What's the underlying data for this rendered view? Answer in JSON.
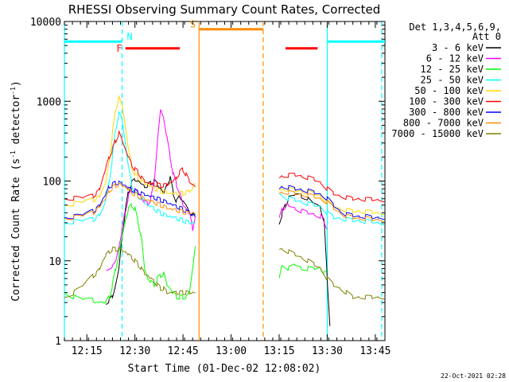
{
  "chart_data": {
    "type": "line",
    "title": "RHESSI Observing Summary Count Rates, Corrected",
    "ylabel": "Corrected Count Rate (s⁻¹ detector⁻¹)",
    "ylabel_main": "Corrected Count Rate (s",
    "ylabel_sup1": "-1",
    "ylabel_mid": " detector",
    "ylabel_sup2": "-1",
    "ylabel_end": ")",
    "xlabel": "Start Time (01-Dec-02 12:08:02)",
    "timestamp": "22-Oct-2021 02:28",
    "y_scale": "log",
    "ylim": [
      1,
      10000
    ],
    "x_minutes_range": [
      0,
      100
    ],
    "x_ticks": [
      {
        "label": "12:15",
        "min": 7
      },
      {
        "label": "12:30",
        "min": 22
      },
      {
        "label": "12:45",
        "min": 37
      },
      {
        "label": "13:00",
        "min": 52
      },
      {
        "label": "13:15",
        "min": 67
      },
      {
        "label": "13:30",
        "min": 82
      },
      {
        "label": "13:45",
        "min": 97
      }
    ],
    "y_ticks": [
      {
        "label": "1",
        "value": 1
      },
      {
        "label": "10",
        "value": 10
      },
      {
        "label": "100",
        "value": 100
      },
      {
        "label": "1000",
        "value": 1000
      },
      {
        "label": "10000",
        "value": 10000
      }
    ],
    "legend_header": [
      "Det 1,3,4,5,6,9,",
      "Att 0"
    ],
    "legend_position": "right",
    "series": [
      {
        "name": "3 - 6 keV",
        "color": "#000000",
        "x": [
          13,
          14,
          15,
          16,
          17,
          18,
          19,
          20,
          21,
          22,
          23,
          24,
          25,
          26,
          27,
          28,
          29,
          30,
          31,
          32,
          33,
          34,
          35,
          36,
          37,
          38,
          39,
          40,
          41,
          67,
          68,
          69,
          70,
          72,
          74,
          76,
          78,
          80,
          81,
          82,
          83
        ],
        "y": [
          3,
          3.2,
          3.6,
          5,
          8,
          20,
          42,
          75,
          95,
          105,
          100,
          92,
          85,
          88,
          95,
          100,
          92,
          80,
          70,
          90,
          110,
          70,
          55,
          65,
          55,
          50,
          40,
          38,
          35,
          30,
          40,
          50,
          62,
          68,
          65,
          60,
          52,
          45,
          32,
          6,
          1.2
        ]
      },
      {
        "name": "6 - 12 keV",
        "color": "#ff00ff",
        "x": [
          13,
          15,
          16,
          17,
          18,
          19,
          20,
          21,
          22,
          23,
          24,
          25,
          26,
          27,
          28,
          29,
          30,
          31,
          32,
          33,
          34,
          35,
          36,
          37,
          38,
          39,
          40,
          41,
          67,
          68,
          69,
          70,
          72,
          74,
          76,
          78,
          80,
          81,
          82
        ],
        "y": [
          8,
          8.5,
          10,
          15,
          25,
          42,
          65,
          75,
          78,
          72,
          62,
          55,
          52,
          60,
          100,
          300,
          800,
          600,
          350,
          200,
          120,
          90,
          70,
          50,
          45,
          40,
          25,
          42,
          33,
          45,
          48,
          50,
          45,
          42,
          40,
          38,
          36,
          32,
          25
        ]
      },
      {
        "name": "12 - 25 keV",
        "color": "#00ff00",
        "x": [
          0,
          3,
          6,
          9,
          12,
          13,
          14,
          15,
          16,
          17,
          18,
          19,
          20,
          21,
          22,
          23,
          24,
          25,
          26,
          27,
          28,
          29,
          30,
          31,
          32,
          33,
          34,
          35,
          36,
          37,
          38,
          39,
          40,
          41,
          67,
          68,
          70,
          72,
          74,
          76,
          78,
          80,
          81,
          82
        ],
        "y": [
          4,
          3.5,
          3.3,
          3.2,
          3,
          3.1,
          3.5,
          5,
          8,
          12,
          20,
          32,
          45,
          50,
          45,
          30,
          20,
          8,
          6,
          5.5,
          5,
          6,
          6.5,
          7,
          5,
          4.5,
          4,
          3.5,
          3.5,
          3.5,
          3.5,
          4,
          8,
          18,
          6,
          9,
          8,
          9,
          8,
          8,
          8,
          8,
          7,
          7
        ]
      },
      {
        "name": "25 - 50 keV",
        "color": "#00ffff",
        "x": [
          0,
          3,
          6,
          9,
          10,
          11,
          12,
          13,
          14,
          15,
          16,
          17,
          18,
          19,
          20,
          21,
          22,
          23,
          24,
          25,
          26,
          27,
          28,
          29,
          30,
          31,
          32,
          33,
          34,
          35,
          36,
          37,
          38,
          39,
          40,
          41,
          67,
          68,
          70,
          72,
          74,
          76,
          78,
          80,
          82,
          84,
          86,
          88,
          90,
          92,
          94,
          96,
          98,
          100
        ],
        "y": [
          30,
          31,
          32,
          33,
          35,
          38,
          45,
          60,
          100,
          200,
          450,
          700,
          600,
          300,
          150,
          90,
          70,
          65,
          60,
          55,
          50,
          48,
          45,
          42,
          40,
          38,
          37,
          36,
          35,
          34,
          33,
          32,
          31,
          30,
          30,
          30,
          70,
          65,
          60,
          58,
          55,
          52,
          50,
          48,
          40,
          35,
          34,
          33,
          32,
          32,
          31,
          31,
          30,
          30
        ]
      },
      {
        "name": "50 - 100 keV",
        "color": "#ffd700",
        "x": [
          0,
          3,
          6,
          9,
          10,
          11,
          12,
          13,
          14,
          15,
          16,
          17,
          18,
          19,
          20,
          21,
          22,
          23,
          24,
          25,
          26,
          27,
          28,
          29,
          30,
          31,
          32,
          33,
          34,
          35,
          36,
          37,
          38,
          39,
          40,
          41,
          67,
          68,
          70,
          72,
          74,
          76,
          78,
          80,
          82,
          84,
          86,
          88,
          90,
          92,
          94,
          96,
          98,
          100
        ],
        "y": [
          50,
          52,
          55,
          58,
          60,
          65,
          80,
          100,
          180,
          400,
          800,
          1100,
          900,
          500,
          250,
          150,
          120,
          110,
          100,
          95,
          90,
          85,
          80,
          78,
          75,
          73,
          72,
          70,
          70,
          70,
          70,
          70,
          72,
          75,
          80,
          100,
          75,
          80,
          78,
          77,
          75,
          72,
          70,
          65,
          55,
          48,
          45,
          43,
          42,
          42,
          41,
          41,
          40,
          40
        ]
      },
      {
        "name": "100 - 300 keV",
        "color": "#ff0000",
        "x": [
          0,
          3,
          6,
          9,
          10,
          11,
          12,
          13,
          14,
          15,
          16,
          17,
          18,
          19,
          20,
          21,
          22,
          23,
          24,
          25,
          26,
          27,
          28,
          29,
          30,
          31,
          32,
          33,
          34,
          35,
          36,
          37,
          38,
          39,
          40,
          41,
          67,
          68,
          70,
          72,
          74,
          76,
          78,
          80,
          82,
          84,
          86,
          88,
          90,
          92,
          94,
          96,
          98,
          100
        ],
        "y": [
          60,
          61,
          62,
          65,
          70,
          80,
          110,
          150,
          200,
          250,
          320,
          400,
          330,
          250,
          200,
          160,
          140,
          130,
          110,
          100,
          95,
          92,
          90,
          90,
          88,
          88,
          90,
          95,
          100,
          110,
          130,
          140,
          120,
          100,
          90,
          85,
          110,
          115,
          118,
          120,
          115,
          110,
          105,
          95,
          80,
          70,
          65,
          62,
          60,
          60,
          59,
          59,
          58,
          58
        ]
      },
      {
        "name": "300 - 800 keV",
        "color": "#0000ff",
        "x": [
          0,
          3,
          6,
          9,
          10,
          11,
          12,
          13,
          14,
          15,
          16,
          17,
          18,
          19,
          20,
          21,
          22,
          23,
          24,
          25,
          26,
          27,
          28,
          29,
          30,
          31,
          32,
          33,
          34,
          35,
          36,
          37,
          38,
          39,
          40,
          41,
          67,
          68,
          70,
          72,
          74,
          76,
          78,
          80,
          82,
          84,
          86,
          88,
          90,
          92,
          94,
          96,
          98,
          100
        ],
        "y": [
          35,
          36,
          38,
          42,
          45,
          50,
          60,
          70,
          85,
          90,
          95,
          95,
          92,
          88,
          82,
          78,
          75,
          72,
          70,
          68,
          66,
          64,
          62,
          60,
          58,
          56,
          54,
          52,
          50,
          48,
          46,
          44,
          42,
          40,
          38,
          36,
          80,
          85,
          83,
          80,
          78,
          75,
          72,
          68,
          60,
          50,
          42,
          38,
          37,
          36,
          36,
          35,
          35,
          35
        ]
      },
      {
        "name": "800 - 7000 keV",
        "color": "#ff8c00",
        "x": [
          0,
          3,
          6,
          9,
          10,
          11,
          12,
          13,
          14,
          15,
          16,
          17,
          18,
          19,
          20,
          21,
          22,
          23,
          24,
          25,
          26,
          27,
          28,
          29,
          30,
          31,
          32,
          33,
          34,
          35,
          36,
          37,
          38,
          39,
          40,
          41,
          67,
          68,
          70,
          72,
          74,
          76,
          78,
          80,
          82,
          84,
          86,
          88,
          90,
          92,
          94,
          96,
          98,
          100
        ],
        "y": [
          34,
          35,
          37,
          40,
          43,
          48,
          55,
          62,
          75,
          82,
          88,
          90,
          88,
          84,
          78,
          72,
          68,
          65,
          62,
          60,
          58,
          56,
          54,
          52,
          50,
          48,
          46,
          45,
          44,
          43,
          42,
          41,
          40,
          40,
          40,
          40,
          70,
          72,
          72,
          70,
          68,
          66,
          64,
          60,
          54,
          46,
          40,
          36,
          35,
          34,
          34,
          33,
          33,
          33
        ]
      },
      {
        "name": "7000 - 15000 keV",
        "color": "#808000",
        "x": [
          0,
          3,
          6,
          9,
          10,
          11,
          12,
          13,
          14,
          15,
          16,
          17,
          18,
          19,
          20,
          21,
          22,
          23,
          24,
          25,
          26,
          27,
          28,
          29,
          30,
          31,
          32,
          33,
          34,
          35,
          36,
          37,
          38,
          39,
          40,
          41,
          67,
          68,
          70,
          72,
          74,
          76,
          78,
          80,
          82,
          84,
          86,
          88,
          90,
          92,
          94,
          96,
          98,
          100
        ],
        "y": [
          3.5,
          4,
          5,
          6.5,
          7,
          8,
          10,
          12,
          13,
          14,
          14,
          14,
          13.5,
          13,
          12,
          11,
          10,
          9,
          8,
          7,
          6.5,
          6,
          5.5,
          5,
          4.5,
          4.5,
          4,
          4,
          4,
          4,
          4,
          4,
          4,
          4,
          4,
          4,
          14,
          14,
          13,
          12,
          11,
          10,
          9,
          8,
          6,
          5,
          4.5,
          4,
          3.5,
          3.5,
          3.5,
          3.5,
          3.5,
          3.5
        ]
      }
    ],
    "annotations": {
      "N": {
        "label": "N",
        "color": "#00ffff",
        "bars": [
          [
            0,
            18
          ],
          [
            82,
            100
          ]
        ],
        "level": 5600
      },
      "F": {
        "label": "F",
        "color": "#ff0000",
        "bars": [
          [
            19,
            36
          ],
          [
            69,
            79
          ]
        ],
        "level": 4600
      },
      "S": {
        "label": "S",
        "color": "#ff8c00",
        "bars": [
          [
            42,
            62
          ]
        ],
        "level": 8000
      }
    },
    "vlines": [
      {
        "min": 0,
        "color": "#00ffff",
        "style": "solid"
      },
      {
        "min": 18,
        "color": "#00ffff",
        "style": "dashed"
      },
      {
        "min": 42,
        "color": "#ff8c00",
        "style": "solid"
      },
      {
        "min": 62,
        "color": "#ff8c00",
        "style": "dashed"
      },
      {
        "min": 82,
        "color": "#00ffff",
        "style": "solid"
      },
      {
        "min": 99,
        "color": "#00ffff",
        "style": "dashed"
      }
    ]
  }
}
